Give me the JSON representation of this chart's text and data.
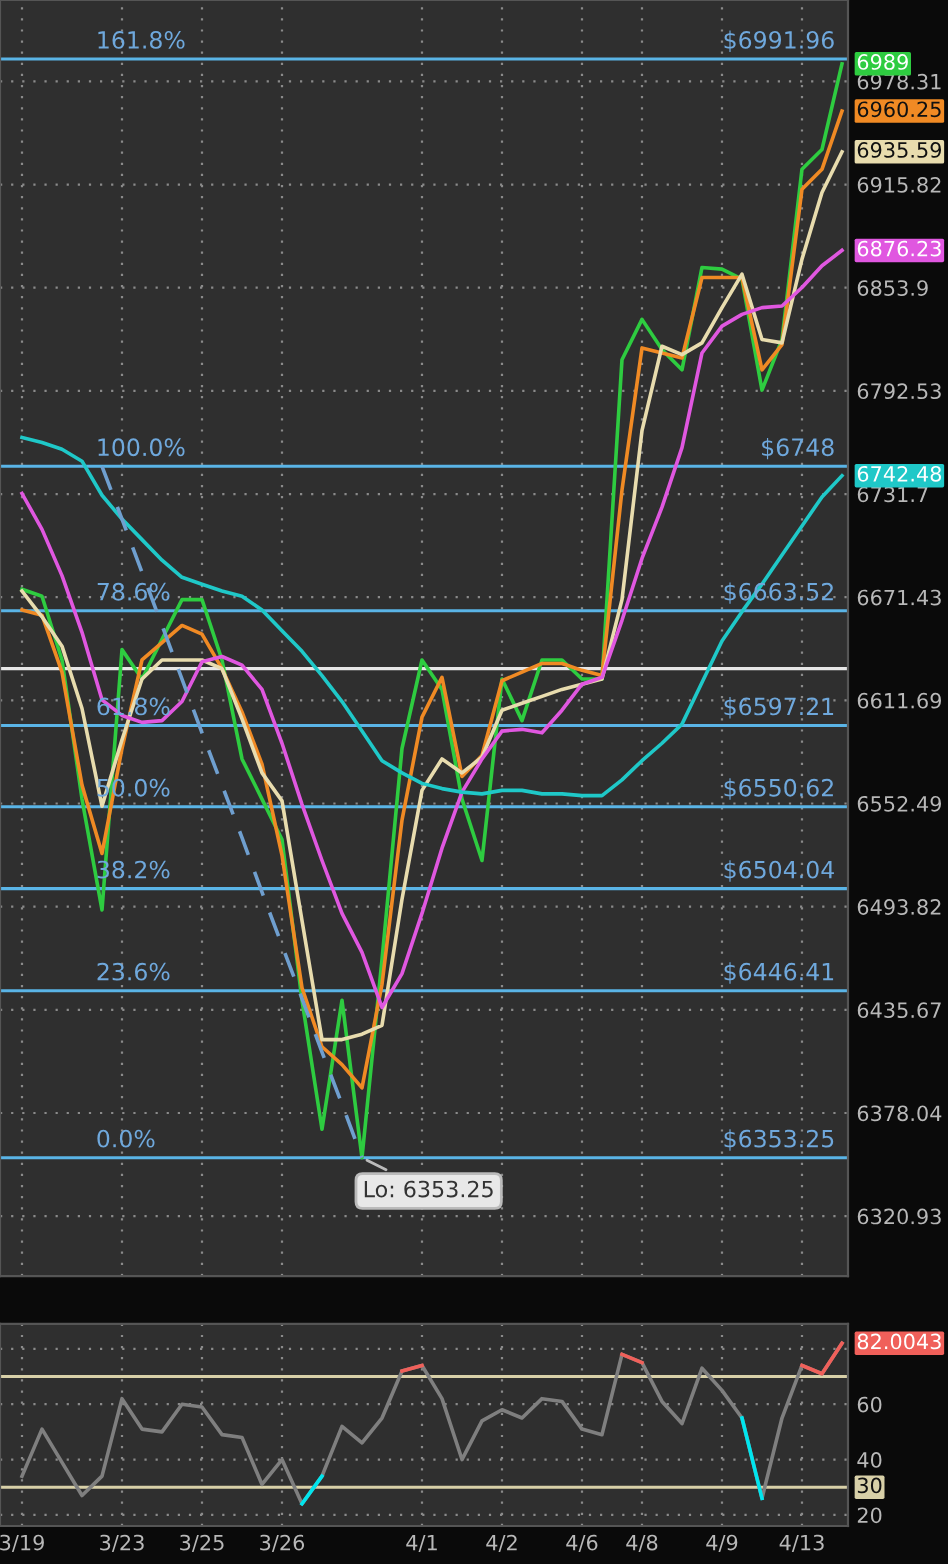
{
  "chart_data": [
    {
      "type": "line",
      "log": true,
      "ylim": [
        6288,
        7028
      ],
      "grid": true,
      "tick_labels": "y",
      "categories": [
        null,
        null,
        null,
        null,
        null,
        null,
        null,
        null,
        null,
        null,
        null,
        null,
        null,
        null,
        null,
        null,
        null,
        null,
        null,
        null,
        null,
        null,
        null,
        null,
        null,
        null,
        null,
        null,
        null,
        null,
        null,
        null,
        null,
        null,
        null,
        null,
        null,
        null,
        null,
        null,
        null,
        null
      ],
      "yticks": [
        6320.93,
        6378.04,
        6435.67,
        6493.82,
        6552.49,
        6611.69,
        6671.43,
        6731.7,
        6792.53,
        6853.9,
        6915.82,
        6978.31
      ],
      "series": [
        {
          "color": "#2ecc40",
          "values": [
            6676,
            6672,
            6635,
            6555,
            6492,
            6641,
            6624,
            6647,
            6670,
            6670,
            6635,
            6578,
            6555,
            6532,
            6441,
            6369,
            6441,
            6353.25,
            6464,
            6584,
            6635,
            6618,
            6555,
            6520,
            6624,
            6600,
            6635,
            6635,
            6624,
            6624,
            6811,
            6835,
            6817,
            6805,
            6866,
            6865,
            6859,
            6793,
            6823,
            6925,
            6937,
            6989
          ],
          "value_labels": [
            null,
            null,
            null,
            null,
            null,
            null,
            null,
            null,
            null,
            null,
            null,
            null,
            null,
            null,
            null,
            null,
            null,
            "Lo: 6353.25",
            null,
            null,
            null,
            null,
            null,
            null,
            null,
            null,
            null,
            null,
            null,
            null,
            null,
            null,
            null,
            null,
            null,
            null,
            null,
            null,
            null,
            null,
            null,
            "6989"
          ]
        },
        {
          "color": "#f08a24",
          "values": [
            6664,
            6661,
            6628,
            6563,
            6524,
            6584,
            6635,
            6645,
            6655,
            6650,
            6630,
            6605,
            6575,
            6523,
            6448,
            6415,
            6405,
            6392,
            6450,
            6543,
            6602,
            6625,
            6568,
            6580,
            6623,
            6628,
            6633,
            6633,
            6629,
            6626,
            6734,
            6818,
            6815,
            6812,
            6860,
            6860,
            6860,
            6805,
            6820,
            6913,
            6925,
            6960.25
          ],
          "value_labels": [
            null,
            null,
            null,
            null,
            null,
            null,
            null,
            null,
            null,
            null,
            null,
            null,
            null,
            null,
            null,
            null,
            null,
            null,
            null,
            null,
            null,
            null,
            null,
            null,
            null,
            null,
            null,
            null,
            null,
            null,
            null,
            null,
            null,
            null,
            null,
            null,
            null,
            null,
            null,
            null,
            null,
            "6960.25"
          ]
        },
        {
          "color": "#e8dcae",
          "values": [
            6675,
            6660,
            6643,
            6607,
            6551,
            6589,
            6624,
            6635,
            6635,
            6635,
            6630,
            6601,
            6570,
            6554,
            6486,
            6419,
            6419,
            6422,
            6427,
            6498,
            6560,
            6578,
            6570,
            6579,
            6606,
            6610,
            6614,
            6618,
            6621,
            6624,
            6670,
            6769,
            6819,
            6814,
            6821,
            6842,
            6862,
            6823,
            6821,
            6871,
            6911,
            6935.59
          ],
          "value_labels": [
            null,
            null,
            null,
            null,
            null,
            null,
            null,
            null,
            null,
            null,
            null,
            null,
            null,
            null,
            null,
            null,
            null,
            null,
            null,
            null,
            null,
            null,
            null,
            null,
            null,
            null,
            null,
            null,
            null,
            null,
            null,
            null,
            null,
            null,
            null,
            null,
            null,
            null,
            null,
            null,
            null,
            "6935.59"
          ]
        },
        {
          "color": "#e057e0",
          "values": [
            6732,
            6711,
            6684,
            6651,
            6612,
            6603,
            6599,
            6600,
            6611,
            6634,
            6637,
            6632,
            6618,
            6587,
            6552,
            6520,
            6490,
            6468,
            6437,
            6456,
            6490,
            6527,
            6559,
            6578,
            6594,
            6595,
            6593,
            6606,
            6621,
            6625,
            6658,
            6694,
            6724,
            6759,
            6815,
            6831,
            6838,
            6842,
            6843,
            6854,
            6867,
            6876.23
          ],
          "value_labels": [
            null,
            null,
            null,
            null,
            null,
            null,
            null,
            null,
            null,
            null,
            null,
            null,
            null,
            null,
            null,
            null,
            null,
            null,
            null,
            null,
            null,
            null,
            null,
            null,
            null,
            null,
            null,
            null,
            null,
            null,
            null,
            null,
            null,
            null,
            null,
            null,
            null,
            null,
            null,
            null,
            null,
            "6876.23"
          ]
        },
        {
          "color": "#1fc8c8",
          "values": [
            6765,
            6762,
            6758,
            6751,
            6731,
            6717,
            6705,
            6693,
            6683,
            6679,
            6675,
            6672,
            6664,
            6652,
            6640,
            6626,
            6611,
            6594,
            6577,
            6570,
            6564,
            6561,
            6559,
            6558,
            6560,
            6560,
            6558,
            6558,
            6557,
            6557,
            6566,
            6577,
            6587,
            6598,
            6622,
            6646,
            6663,
            6679,
            6696,
            6713,
            6730,
            6742.48
          ],
          "value_labels": [
            null,
            null,
            null,
            null,
            null,
            null,
            null,
            null,
            null,
            null,
            null,
            null,
            null,
            null,
            null,
            null,
            null,
            null,
            null,
            null,
            null,
            null,
            null,
            null,
            null,
            null,
            null,
            null,
            null,
            null,
            null,
            null,
            null,
            null,
            null,
            null,
            null,
            null,
            null,
            null,
            null,
            "6742.48"
          ]
        },
        {
          "color": "#6f9fcf",
          "line_style": "dashed",
          "values": [
            null,
            null,
            null,
            null,
            6748,
            6717,
            6686,
            6655,
            6624,
            6593,
            6563,
            6533,
            6502,
            6472,
            6442,
            6412,
            6383,
            6353.25,
            null,
            null,
            null,
            null,
            null,
            null,
            null,
            null,
            null,
            null,
            null,
            null,
            null,
            null,
            null,
            null,
            null,
            null,
            null,
            null,
            null,
            null,
            null,
            null
          ]
        }
      ],
      "ref_lines": [
        {
          "axis": "y",
          "value": 6991.96,
          "label": "$6991.96",
          "color": "#5ab4e6"
        },
        {
          "axis": "y",
          "value": 6748,
          "label": "$6748",
          "color": "#5ab4e6"
        },
        {
          "axis": "y",
          "value": 6663.52,
          "label": "$6663.52",
          "color": "#5ab4e6"
        },
        {
          "axis": "y",
          "value": 6630,
          "color": "#e6e6e6"
        },
        {
          "axis": "y",
          "value": 6597.21,
          "label": "$6597.21",
          "color": "#5ab4e6"
        },
        {
          "axis": "y",
          "value": 6550.62,
          "label": "$6550.62",
          "color": "#5ab4e6"
        },
        {
          "axis": "y",
          "value": 6504.04,
          "label": "$6504.04",
          "color": "#5ab4e6"
        },
        {
          "axis": "y",
          "value": 6446.41,
          "label": "$6446.41",
          "color": "#5ab4e6"
        },
        {
          "axis": "y",
          "value": 6353.25,
          "label": "$6353.25",
          "color": "#5ab4e6"
        }
      ],
      "annotations": [
        {
          "text": "161.8%",
          "y": 6991.96
        },
        {
          "text": "100.0%",
          "y": 6748
        },
        {
          "text": "78.6%",
          "y": 6663.52
        },
        {
          "text": "61.8%",
          "y": 6597.21
        },
        {
          "text": "50.0%",
          "y": 6550.62
        },
        {
          "text": "38.2%",
          "y": 6504.04
        },
        {
          "text": "23.6%",
          "y": 6446.41
        },
        {
          "text": "0.0%",
          "y": 6353.25
        }
      ]
    },
    {
      "type": "line",
      "ylim": [
        16,
        89
      ],
      "grid": true,
      "categories": [
        "3/19",
        null,
        null,
        null,
        null,
        "3/23",
        null,
        null,
        null,
        "3/25",
        null,
        null,
        null,
        "3/26",
        null,
        null,
        null,
        null,
        null,
        null,
        "4/1",
        null,
        null,
        null,
        "4/2",
        null,
        null,
        null,
        "4/6",
        null,
        null,
        "4/8",
        null,
        null,
        null,
        "4/9",
        null,
        null,
        null,
        "4/13",
        null,
        null
      ],
      "yticks": [
        20,
        40,
        60,
        {
          "value": 80,
          "label": null
        }
      ],
      "series": [
        {
          "color": "#7f7f7f",
          "values": [
            34,
            51,
            39,
            27,
            34,
            62,
            51,
            50,
            60,
            59,
            49,
            48,
            31,
            40,
            24,
            34,
            52,
            46,
            55,
            72,
            74,
            62,
            40,
            54,
            58,
            55,
            62,
            61,
            51,
            49,
            78,
            75,
            61,
            53,
            73,
            65,
            55,
            26,
            55,
            74,
            71,
            82.0043
          ]
        },
        {
          "color": "#f0605a",
          "values": [
            null,
            null,
            null,
            null,
            null,
            null,
            null,
            null,
            null,
            null,
            null,
            null,
            null,
            null,
            null,
            null,
            null,
            null,
            null,
            72,
            74,
            null,
            null,
            null,
            null,
            null,
            null,
            null,
            null,
            null,
            78,
            75,
            null,
            null,
            null,
            null,
            null,
            null,
            null,
            74,
            71,
            82.0043
          ],
          "value_labels": [
            null,
            null,
            null,
            null,
            null,
            null,
            null,
            null,
            null,
            null,
            null,
            null,
            null,
            null,
            null,
            null,
            null,
            null,
            null,
            null,
            null,
            null,
            null,
            null,
            null,
            null,
            null,
            null,
            null,
            null,
            null,
            null,
            null,
            null,
            null,
            null,
            null,
            null,
            null,
            null,
            null,
            "82.0043"
          ]
        },
        {
          "color": "#00e5ee",
          "values": [
            null,
            null,
            null,
            null,
            null,
            null,
            null,
            null,
            null,
            null,
            null,
            null,
            null,
            null,
            24,
            34,
            null,
            null,
            null,
            null,
            null,
            null,
            null,
            null,
            null,
            null,
            null,
            null,
            null,
            null,
            null,
            null,
            null,
            null,
            null,
            null,
            55,
            26,
            null,
            null,
            null,
            null
          ]
        }
      ],
      "ref_lines": [
        {
          "axis": "y",
          "value": 70,
          "color": "#d8d0a8"
        },
        {
          "axis": "y",
          "value": 30,
          "label": "30",
          "color": "#d8d0a8"
        }
      ]
    }
  ]
}
